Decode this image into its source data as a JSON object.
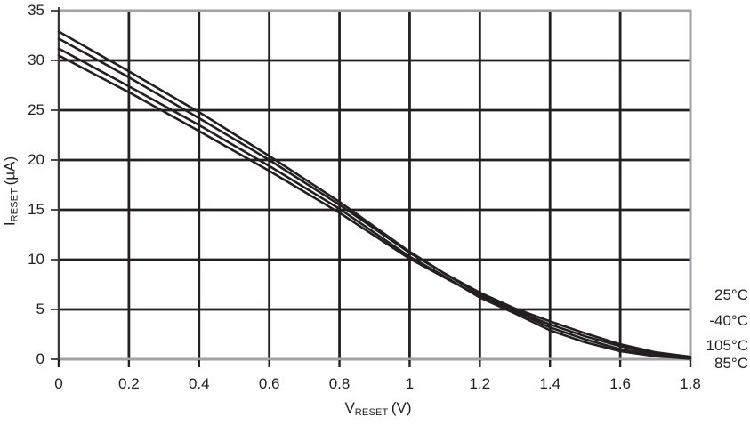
{
  "chart_data": {
    "type": "line",
    "title": "",
    "xlabel": "VRESET (V)",
    "ylabel": "IRESET (uA)",
    "x_axis": {
      "main": "V",
      "sub": "RESET",
      "unit": "(V)"
    },
    "y_axis": {
      "main": "I",
      "sub": "RESET",
      "unit": "(µA)"
    },
    "xlim": [
      0,
      1.8
    ],
    "ylim": [
      0,
      35
    ],
    "grid": true,
    "legend_position": "right-outside",
    "colors": {
      "curve": "#231f20",
      "grid": "#231f20",
      "frame": "#a0a2a5",
      "text": "#231f20",
      "background": "#ffffff"
    },
    "x_ticks": {
      "values": [
        0,
        0.2,
        0.4,
        0.6,
        0.8,
        1.0,
        1.2,
        1.4,
        1.6,
        1.8
      ],
      "labels": [
        "0",
        "0.2",
        "0.4",
        "0.6",
        "0.8",
        "1",
        "1.2",
        "1.4",
        "1.6",
        "1.8"
      ]
    },
    "y_ticks": {
      "values": [
        0,
        5,
        10,
        15,
        20,
        25,
        30,
        35
      ],
      "labels": [
        "0",
        "5",
        "10",
        "15",
        "20",
        "25",
        "30",
        "35"
      ]
    },
    "x": [
      0,
      0.2,
      0.4,
      0.6,
      0.8,
      1.0,
      1.1,
      1.2,
      1.3,
      1.4,
      1.5,
      1.6,
      1.7,
      1.8
    ],
    "series": [
      {
        "label": "25°C",
        "values": [
          32.2,
          28.3,
          24.2,
          20.0,
          15.5,
          10.7,
          8.6,
          6.7,
          5.1,
          3.8,
          2.6,
          1.5,
          0.7,
          0.25
        ]
      },
      {
        "label": "-40°C",
        "values": [
          32.9,
          28.9,
          24.8,
          20.4,
          15.8,
          10.8,
          8.6,
          6.5,
          4.9,
          3.5,
          2.3,
          1.3,
          0.5,
          0.15
        ]
      },
      {
        "label": "105°C",
        "values": [
          30.5,
          26.8,
          22.9,
          18.9,
          14.7,
          10.1,
          8.2,
          6.3,
          4.8,
          3.2,
          2.0,
          1.0,
          0.4,
          0.1
        ]
      },
      {
        "label": "85°C",
        "values": [
          31.2,
          27.4,
          23.5,
          19.4,
          15.1,
          10.3,
          8.3,
          6.2,
          4.6,
          2.9,
          1.7,
          0.8,
          0.3,
          0.05
        ]
      }
    ]
  }
}
